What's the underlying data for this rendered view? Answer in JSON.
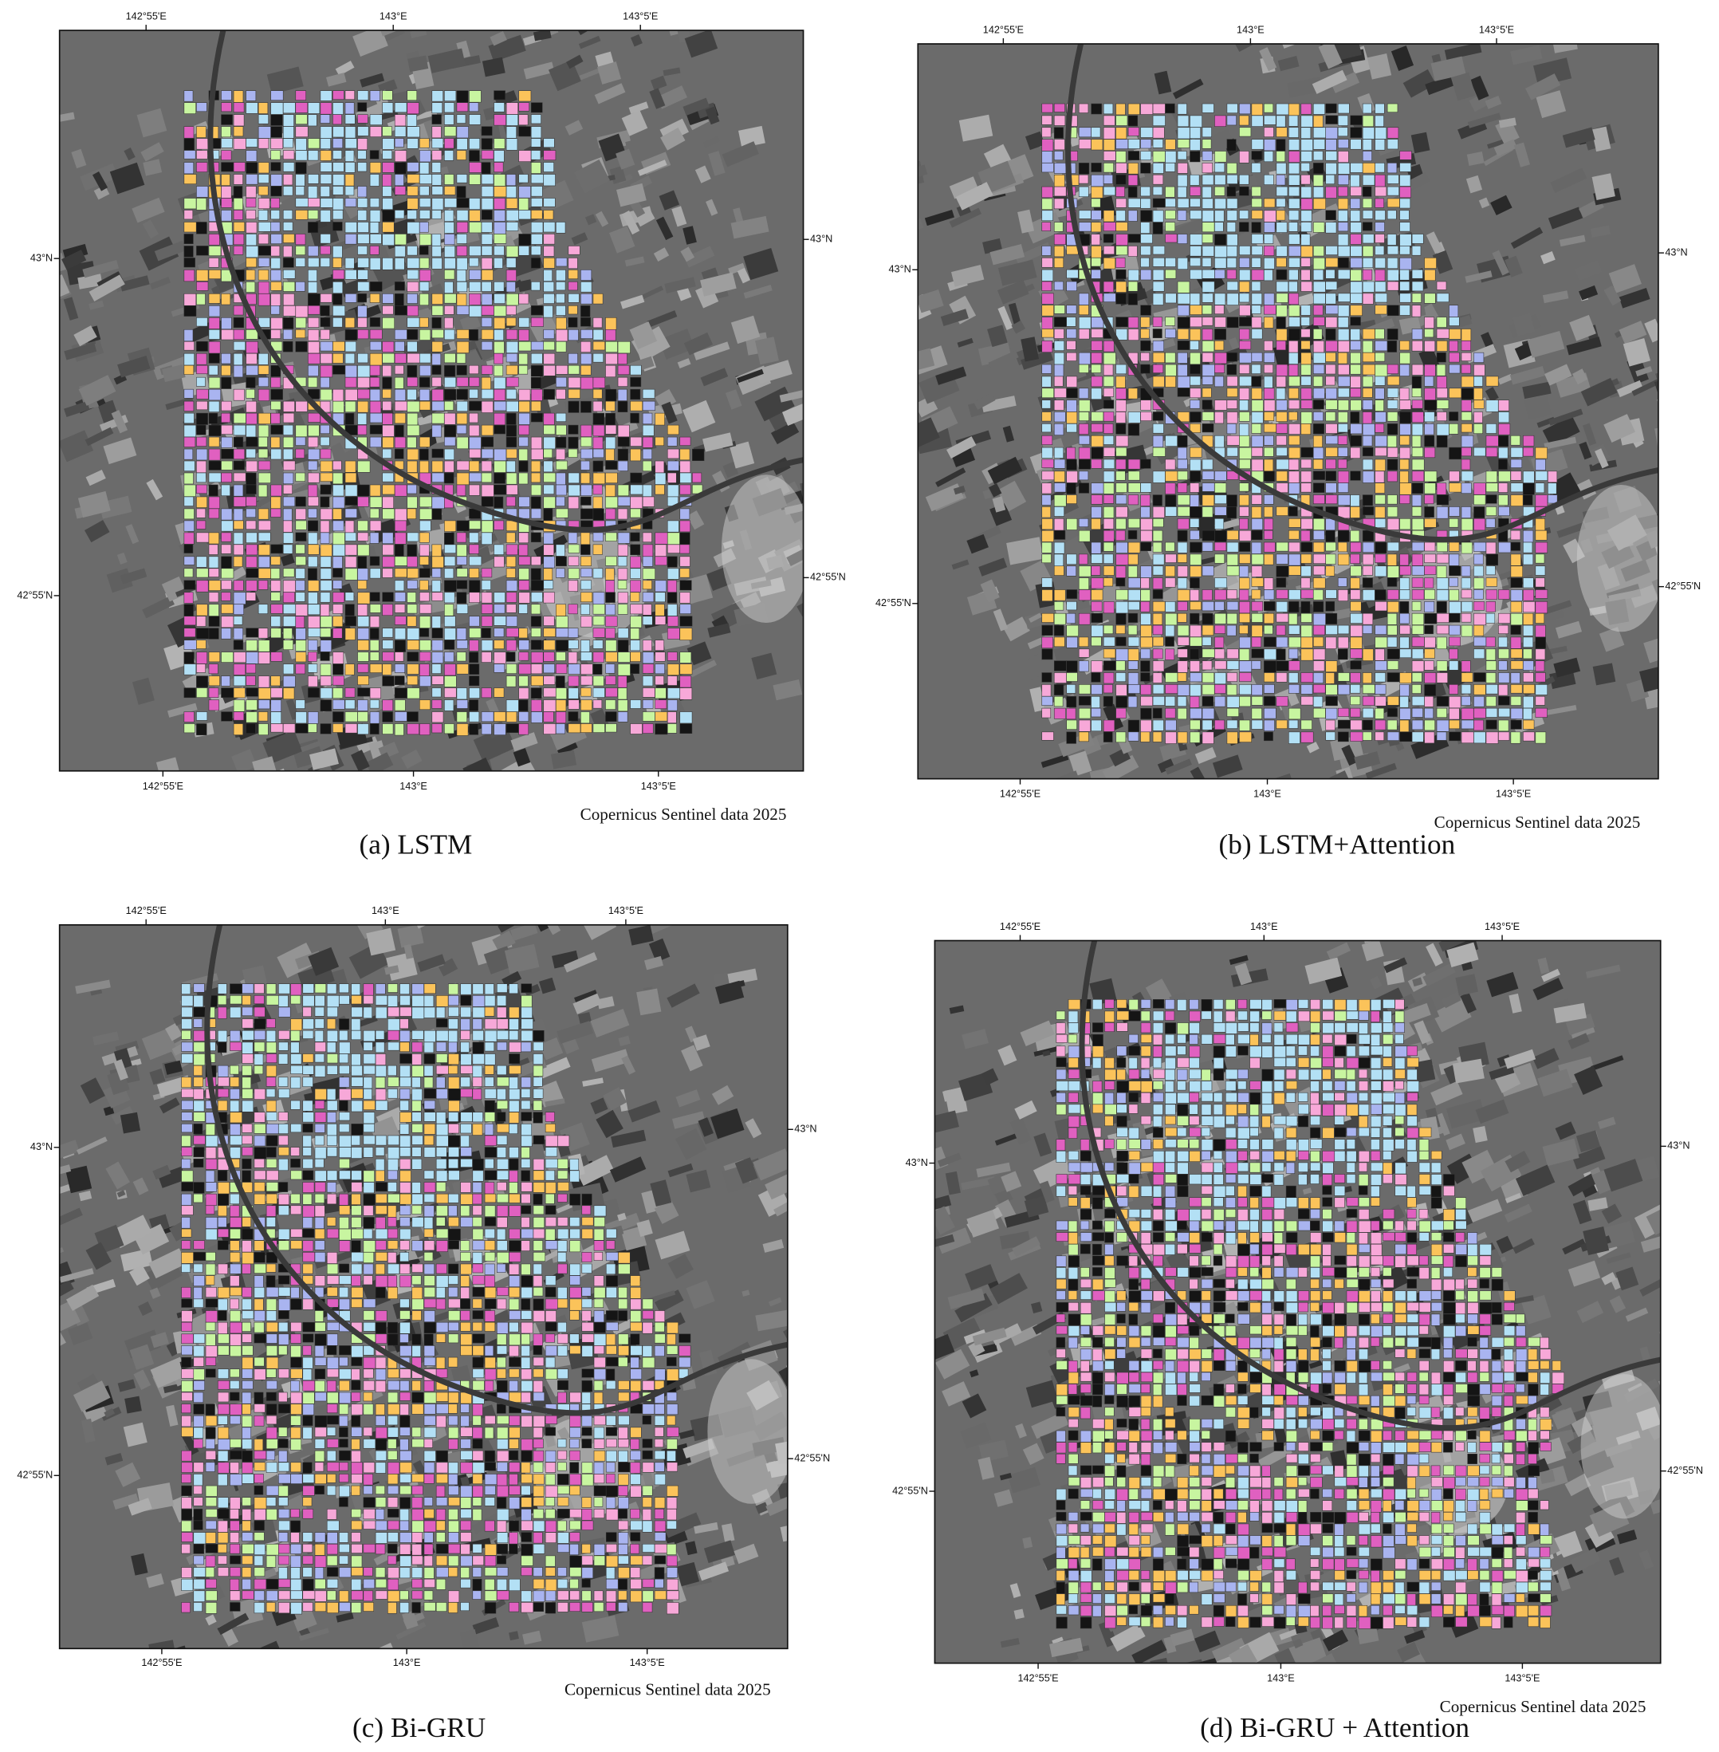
{
  "panels": [
    {
      "caption": "(a) LSTM",
      "credit": "Copernicus Sentinel data 2025",
      "top_labels": [
        "142°55'E",
        "143°E",
        "143°5'E"
      ],
      "bottom_labels": [
        "142°55'E",
        "143°E",
        "143°5'E"
      ],
      "left_labels": [
        "43°N",
        "42°55'N"
      ],
      "right_labels": [
        "43°N",
        "42°55'N"
      ]
    },
    {
      "caption": "(b) LSTM+Attention",
      "credit": "Copernicus Sentinel data 2025",
      "top_labels": [
        "142°55'E",
        "143°E",
        "143°5'E"
      ],
      "bottom_labels": [
        "142°55'E",
        "143°E",
        "143°5'E"
      ],
      "left_labels": [
        "43°N",
        "42°55'N"
      ],
      "right_labels": [
        "43°N",
        "42°55'N"
      ]
    },
    {
      "caption": "(c) Bi-GRU",
      "credit": "Copernicus Sentinel data 2025",
      "top_labels": [
        "142°55'E",
        "143°E",
        "143°5'E"
      ],
      "bottom_labels": [
        "142°55'E",
        "143°E",
        "143°5'E"
      ],
      "left_labels": [
        "43°N",
        "42°55'N"
      ],
      "right_labels": [
        "43°N",
        "42°55'N"
      ]
    },
    {
      "caption": "(d) Bi-GRU + Attention",
      "credit": "Copernicus Sentinel data 2025",
      "top_labels": [
        "142°55'E",
        "143°E",
        "143°5'E"
      ],
      "bottom_labels": [
        "142°55'E",
        "143°E",
        "143°5'E"
      ],
      "left_labels": [
        "43°N",
        "42°55'N"
      ],
      "right_labels": [
        "43°N",
        "42°55'N"
      ]
    }
  ]
}
